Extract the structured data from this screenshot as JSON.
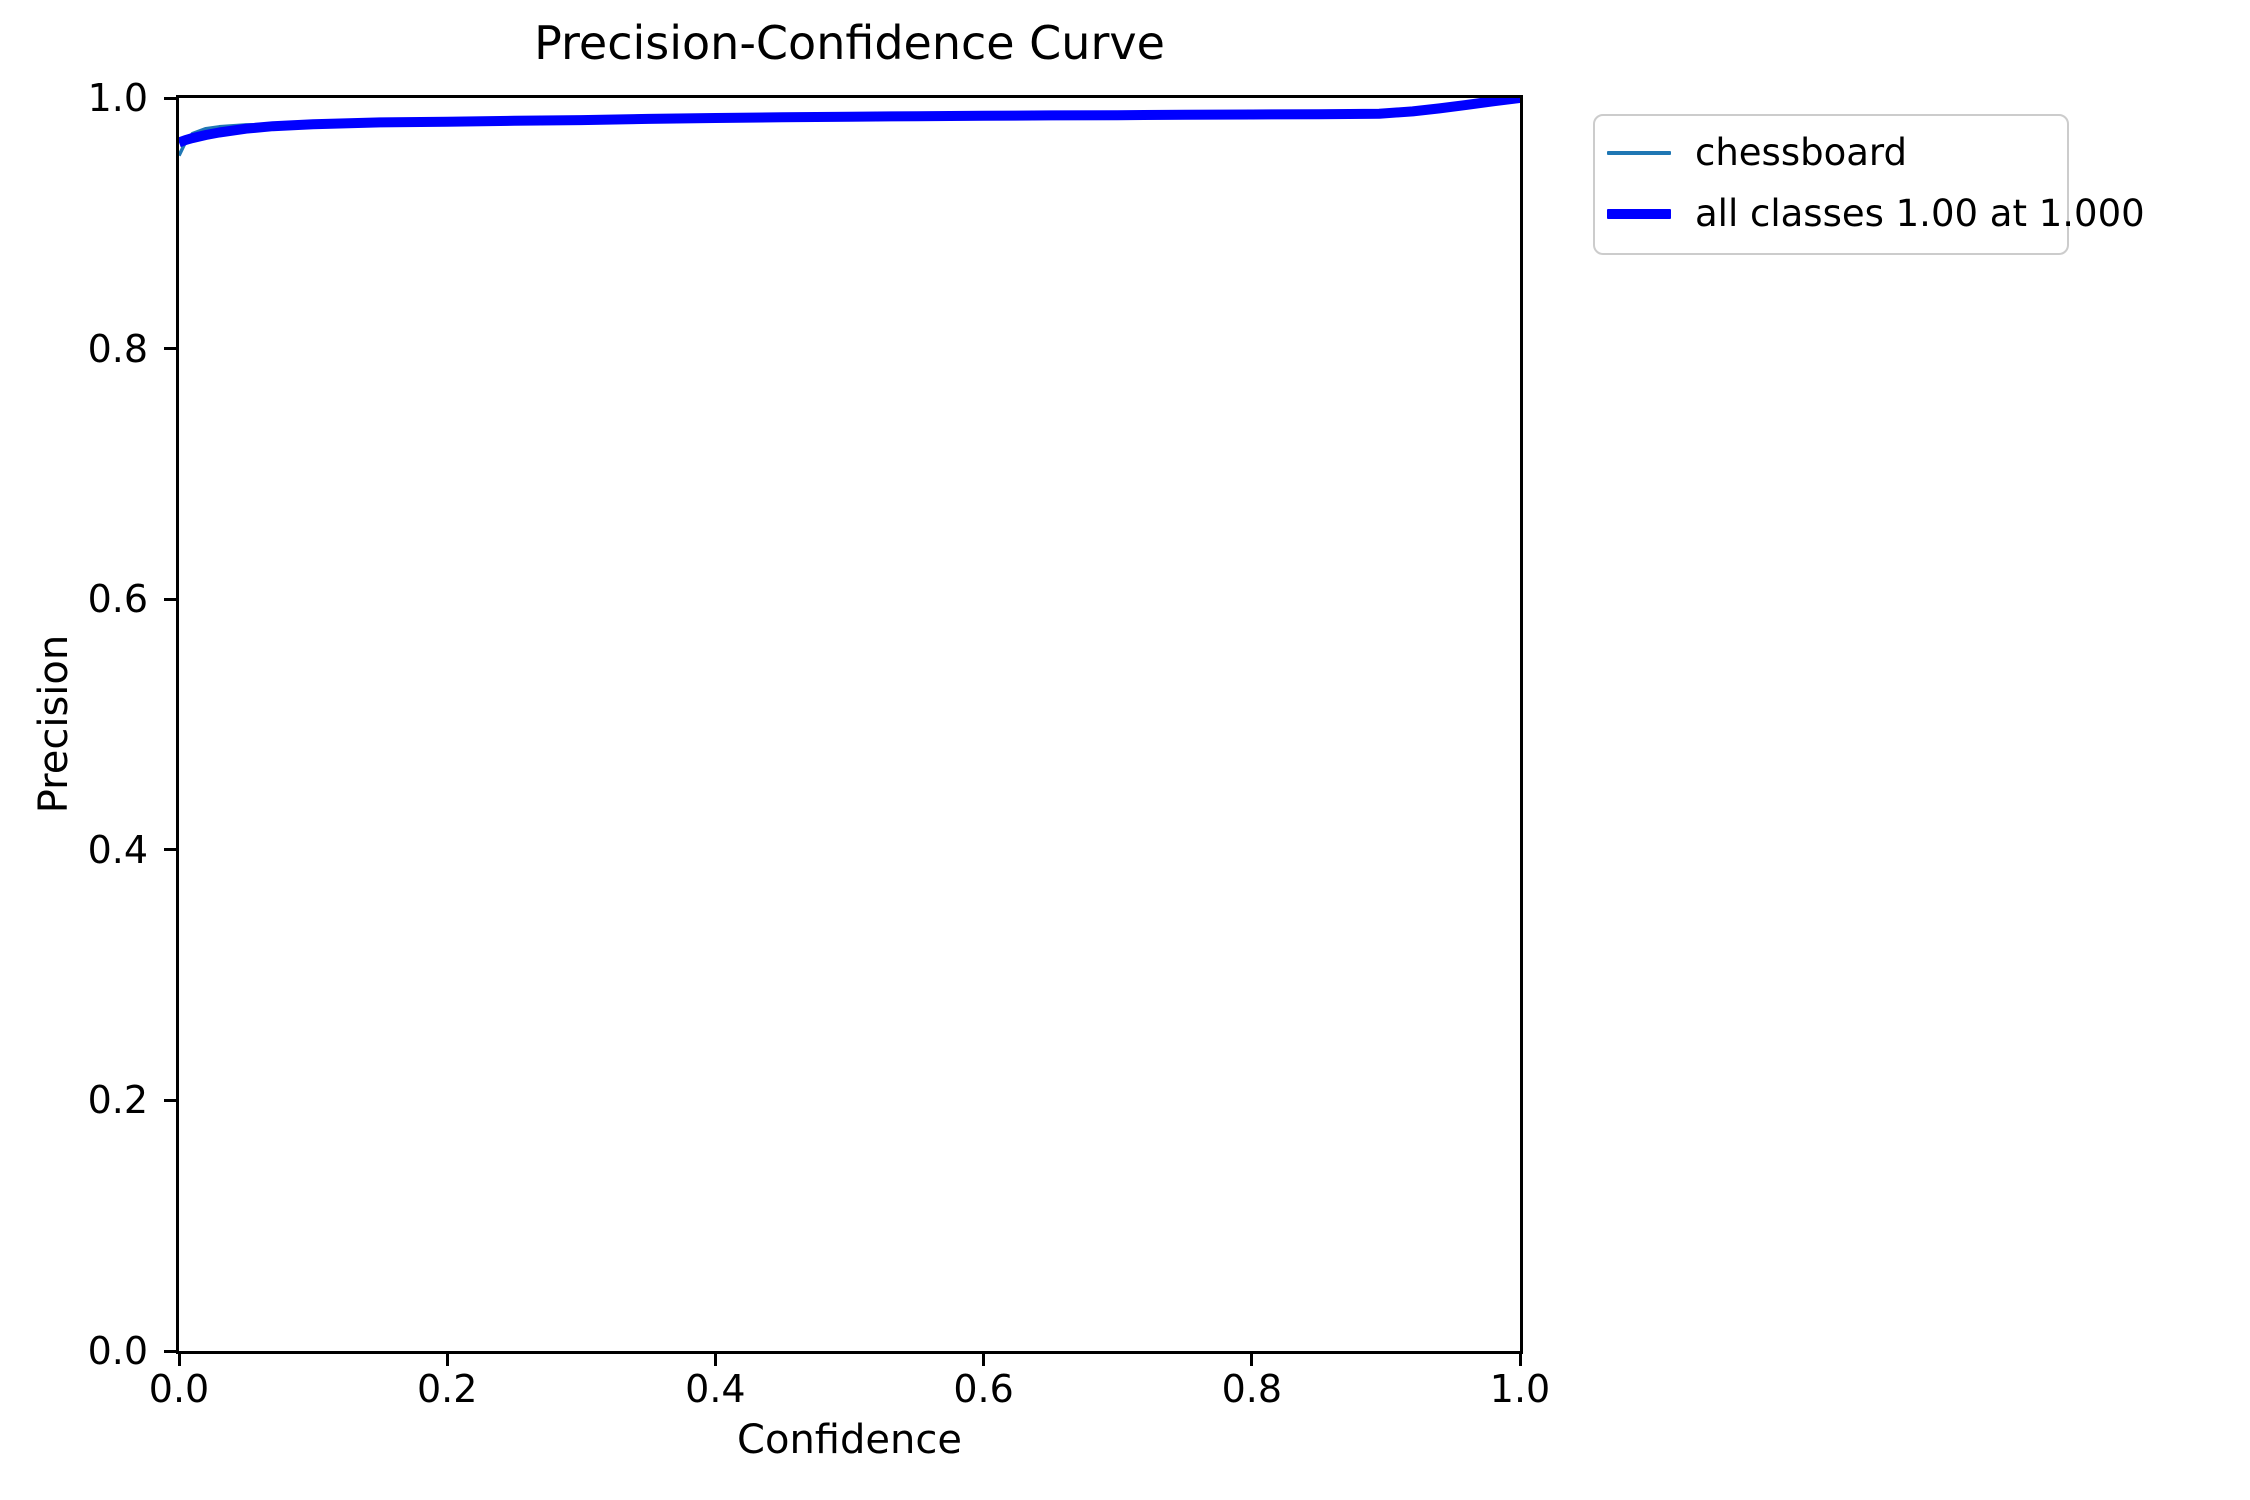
{
  "chart_data": {
    "type": "line",
    "title": "Precision-Confidence Curve",
    "xlabel": "Confidence",
    "ylabel": "Precision",
    "xlim": [
      0.0,
      1.0
    ],
    "ylim": [
      0.0,
      1.0
    ],
    "xticks": [
      "0.0",
      "0.2",
      "0.4",
      "0.6",
      "0.8",
      "1.0"
    ],
    "yticks": [
      "0.0",
      "0.2",
      "0.4",
      "0.6",
      "0.8",
      "1.0"
    ],
    "grid": false,
    "legend_position": "outside-upper-right",
    "axes_color": "#000000",
    "background_color": "#ffffff",
    "series": [
      {
        "name": "chessboard",
        "label": "chessboard",
        "color": "#1f77b4",
        "linewidth": 3.5,
        "x": [
          0.0,
          0.004,
          0.01,
          0.02,
          0.03,
          0.05,
          0.07,
          0.1,
          0.15,
          0.2,
          0.25,
          0.3,
          0.35,
          0.4,
          0.45,
          0.5,
          0.55,
          0.6,
          0.65,
          0.7,
          0.75,
          0.8,
          0.85,
          0.9,
          0.915,
          0.93,
          0.95,
          0.97,
          0.985,
          1.0
        ],
        "y": [
          0.954,
          0.963,
          0.9715,
          0.9755,
          0.977,
          0.9785,
          0.979,
          0.9795,
          0.9802,
          0.9808,
          0.9816,
          0.9822,
          0.9831,
          0.9838,
          0.9844,
          0.9849,
          0.9853,
          0.9856,
          0.9859,
          0.9861,
          0.9864,
          0.9866,
          0.9869,
          0.9871,
          0.9871,
          0.9895,
          0.9932,
          0.9962,
          0.9985,
          1.0
        ]
      },
      {
        "name": "all-classes",
        "label": "all classes 1.00 at 1.000",
        "color": "#0000ff",
        "linewidth": 10,
        "x": [
          0.0,
          0.005,
          0.01,
          0.02,
          0.03,
          0.05,
          0.07,
          0.1,
          0.15,
          0.2,
          0.25,
          0.3,
          0.35,
          0.4,
          0.45,
          0.5,
          0.55,
          0.6,
          0.65,
          0.7,
          0.75,
          0.8,
          0.85,
          0.895,
          0.92,
          0.94,
          0.96,
          0.98,
          1.0
        ],
        "y": [
          0.9645,
          0.9665,
          0.968,
          0.9705,
          0.9725,
          0.9755,
          0.9775,
          0.979,
          0.9805,
          0.981,
          0.9818,
          0.9824,
          0.9833,
          0.984,
          0.9846,
          0.9851,
          0.9855,
          0.9858,
          0.9861,
          0.9863,
          0.9866,
          0.9868,
          0.9871,
          0.9875,
          0.9893,
          0.9917,
          0.9945,
          0.9974,
          1.0
        ]
      }
    ]
  }
}
